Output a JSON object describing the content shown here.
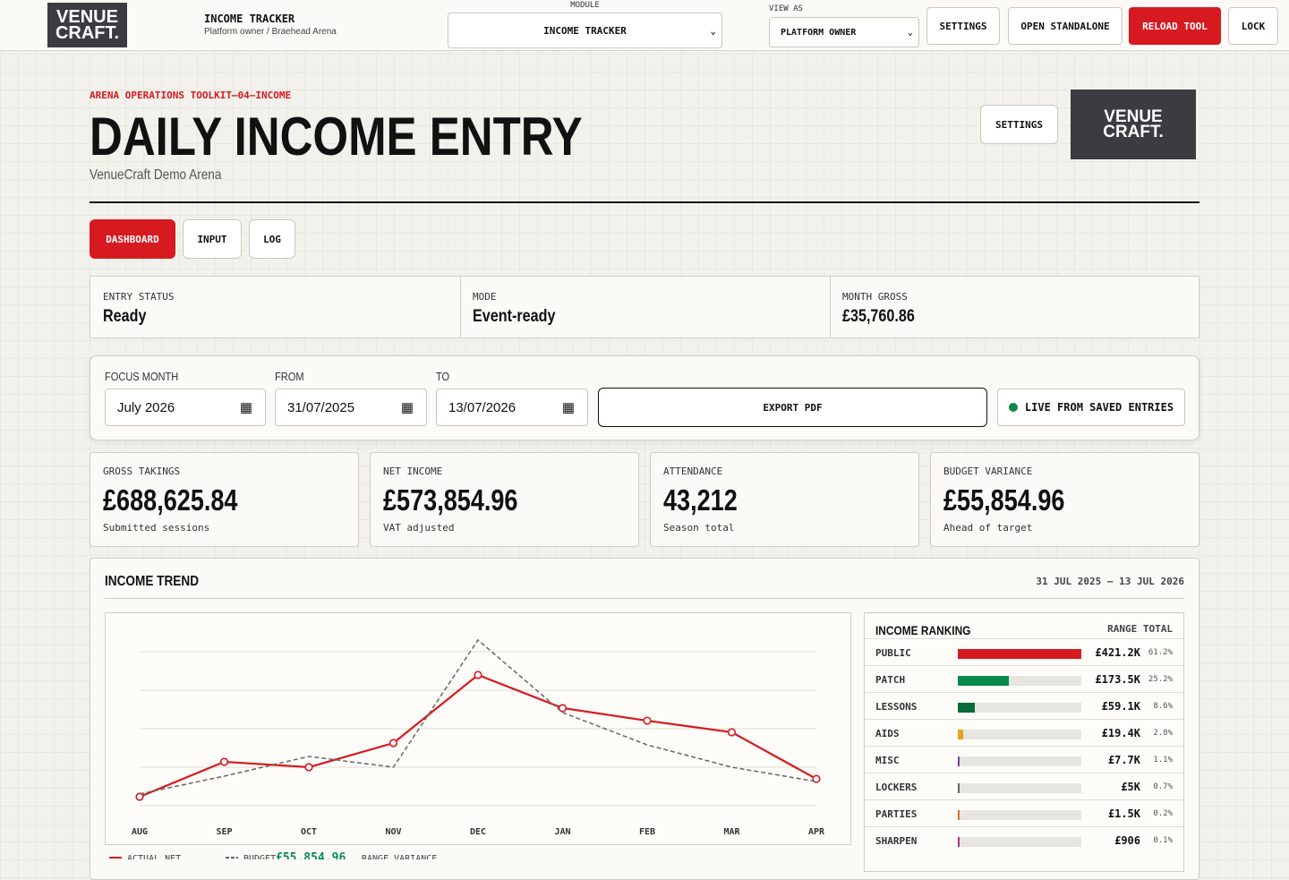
{
  "header": {
    "logo": [
      "VENUE",
      "CRAFT."
    ],
    "app_title": "INCOME TRACKER",
    "app_subtitle": "Platform owner / Braehead Arena",
    "module_label": "MODULE",
    "module_value": "INCOME TRACKER",
    "view_label": "VIEW AS",
    "view_value": "PLATFORM OWNER",
    "buttons": [
      "SETTINGS",
      "OPEN STANDALONE",
      "RELOAD TOOL",
      "LOCK"
    ]
  },
  "page": {
    "eyebrow": "ARENA OPERATIONS TOOLKIT—04—INCOME",
    "title": "DAILY INCOME ENTRY",
    "subtitle": "VenueCraft Demo Arena",
    "settings": "SETTINGS",
    "logo": [
      "VENUE",
      "CRAFT."
    ]
  },
  "tabs": [
    "DASHBOARD",
    "INPUT",
    "LOG"
  ],
  "status": [
    {
      "label": "ENTRY STATUS",
      "value": "Ready"
    },
    {
      "label": "MODE",
      "value": "Event-ready"
    },
    {
      "label": "MONTH GROSS",
      "value": "£35,760.86"
    }
  ],
  "filters": {
    "focus_label": "FOCUS MONTH",
    "focus_value": "July 2026",
    "from_label": "FROM",
    "from_value": "31/07/2025",
    "to_label": "TO",
    "to_value": "13/07/2026",
    "export": "EXPORT PDF",
    "live": "LIVE FROM SAVED ENTRIES"
  },
  "kpis": [
    {
      "label": "GROSS TAKINGS",
      "value": "£688,625.84",
      "note": "Submitted sessions"
    },
    {
      "label": "NET INCOME",
      "value": "£573,854.96",
      "note": "VAT adjusted"
    },
    {
      "label": "ATTENDANCE",
      "value": "43,212",
      "note": "Season total"
    },
    {
      "label": "BUDGET VARIANCE",
      "value": "£55,854.96",
      "note": "Ahead of target"
    }
  ],
  "trend": {
    "title": "INCOME TREND",
    "range": "31 JUL 2025 – 13 JUL 2026",
    "legend_value": "£55,854.96",
    "legend_note": "RANGE VARIANCE"
  },
  "chart_data": {
    "type": "line",
    "categories": [
      "AUG",
      "SEP",
      "OCT",
      "NOV",
      "DEC",
      "JAN",
      "FEB",
      "MAR",
      "APR"
    ],
    "series": [
      {
        "name": "ACTUAL NET",
        "color": "#d71920",
        "values": [
          5.8,
          28.5,
          25,
          40.7,
          84.9,
          63.4,
          55.2,
          47.7,
          17.4
        ]
      },
      {
        "name": "BUDGET",
        "color": "#666666",
        "dashed": true,
        "values": [
          7.6,
          19.2,
          32,
          25,
          107.6,
          60.5,
          39.5,
          25,
          15.7
        ]
      }
    ],
    "ylim": [
      0,
      120
    ],
    "yticks": [
      0,
      25,
      50,
      75,
      100
    ],
    "grid": true
  },
  "ranking": {
    "title": "INCOME RANKING",
    "total_label": "RANGE TOTAL",
    "categories": [
      "PUBLIC",
      "PATCH",
      "LESSONS",
      "AIDS",
      "MISC",
      "LOCKERS",
      "PARTIES",
      "SHARPEN"
    ],
    "values": [
      61.2,
      25.2,
      8.6,
      2.8,
      1.1,
      0.7,
      0.2,
      0.1
    ],
    "value_labels": [
      "61.2%",
      "25.2%",
      "8.6%",
      "2.8%",
      "1.1%",
      "0.7%",
      "0.2%",
      "0.1%"
    ],
    "amounts": [
      "£421.2K",
      "£173.5K",
      "£59.1K",
      "£19.4K",
      "£7.7K",
      "£5K",
      "£1.5K",
      "£906"
    ],
    "colors": [
      "#d71920",
      "#0a8a4a",
      "#0b6b3a",
      "#e8a317",
      "#7b3fa0",
      "#666666",
      "#e07030",
      "#b03090"
    ]
  }
}
